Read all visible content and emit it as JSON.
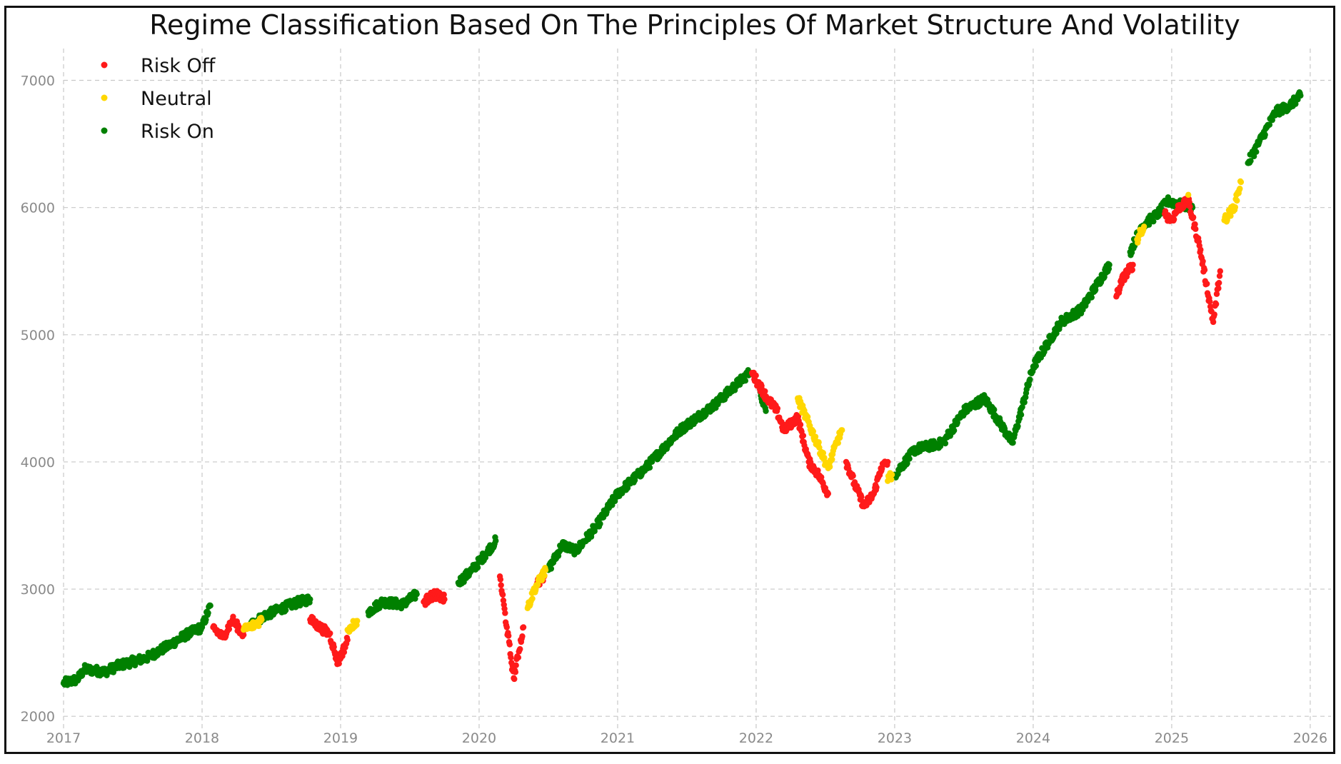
{
  "chart_data": {
    "type": "scatter",
    "title": "Regime Classification Based On The Principles Of Market Structure And Volatility",
    "xlabel": "",
    "ylabel": "",
    "xlim": [
      2017,
      2026.15
    ],
    "ylim": [
      1900,
      7250
    ],
    "x_ticks": [
      "2017",
      "2018",
      "2019",
      "2020",
      "2021",
      "2022",
      "2023",
      "2024",
      "2025",
      "2026"
    ],
    "y_ticks": [
      "2000",
      "3000",
      "4000",
      "5000",
      "6000",
      "7000"
    ],
    "grid": true,
    "legend_position": "top-left",
    "colors": {
      "Risk Off": "#ff1a1a",
      "Neutral": "#ffd700",
      "Risk On": "#008000"
    },
    "legend": [
      "Risk Off",
      "Neutral",
      "Risk On"
    ],
    "series": [
      {
        "name": "Risk On",
        "segments": [
          {
            "x": [
              2017.0,
              2017.1,
              2017.15,
              2017.3,
              2017.4,
              2017.5,
              2017.6,
              2017.75,
              2017.9,
              2018.0,
              2018.06
            ],
            "y": [
              2260,
              2290,
              2370,
              2350,
              2400,
              2430,
              2460,
              2550,
              2650,
              2700,
              2870
            ]
          },
          {
            "x": [
              2018.35,
              2018.45,
              2018.6,
              2018.7,
              2018.78
            ],
            "y": [
              2720,
              2790,
              2860,
              2900,
              2920
            ]
          },
          {
            "x": [
              2019.2,
              2019.3,
              2019.45,
              2019.55
            ],
            "y": [
              2820,
              2900,
              2880,
              2960
            ]
          },
          {
            "x": [
              2019.85,
              2019.95,
              2020.05,
              2020.12
            ],
            "y": [
              3050,
              3150,
              3280,
              3380
            ]
          },
          {
            "x": [
              2020.5,
              2020.6,
              2020.7,
              2020.85,
              2021.0,
              2021.2,
              2021.45,
              2021.7,
              2021.85,
              2021.95
            ],
            "y": [
              3150,
              3350,
              3300,
              3500,
              3750,
              3950,
              4250,
              4450,
              4600,
              4700
            ]
          },
          {
            "x": [
              2022.03,
              2022.07
            ],
            "y": [
              4550,
              4400
            ]
          },
          {
            "x": [
              2023.0,
              2023.15,
              2023.35,
              2023.5,
              2023.65,
              2023.85,
              2024.0,
              2024.2,
              2024.35,
              2024.55
            ],
            "y": [
              3900,
              4100,
              4150,
              4400,
              4500,
              4150,
              4750,
              5100,
              5200,
              5550
            ]
          },
          {
            "x": [
              2024.7,
              2024.78,
              2024.9,
              2024.97,
              2025.15
            ],
            "y": [
              5650,
              5850,
              5950,
              6050,
              6000
            ]
          },
          {
            "x": [
              2025.55,
              2025.65,
              2025.75,
              2025.85,
              2025.93
            ],
            "y": [
              6350,
              6550,
              6750,
              6800,
              6880
            ]
          }
        ]
      },
      {
        "name": "Risk Off",
        "segments": [
          {
            "x": [
              2018.08,
              2018.15,
              2018.22,
              2018.3
            ],
            "y": [
              2700,
              2620,
              2760,
              2640
            ]
          },
          {
            "x": [
              2018.78,
              2018.85,
              2018.92,
              2018.98,
              2019.05
            ],
            "y": [
              2760,
              2700,
              2650,
              2420,
              2600
            ]
          },
          {
            "x": [
              2019.6,
              2019.68,
              2019.75
            ],
            "y": [
              2900,
              2960,
              2920
            ]
          },
          {
            "x": [
              2020.15,
              2020.2,
              2020.25,
              2020.32
            ],
            "y": [
              3100,
              2700,
              2300,
              2700
            ]
          },
          {
            "x": [
              2020.42,
              2020.47
            ],
            "y": [
              3050,
              3100
            ]
          },
          {
            "x": [
              2021.97,
              2022.08,
              2022.15,
              2022.2,
              2022.3,
              2022.38,
              2022.45,
              2022.52
            ],
            "y": [
              4700,
              4500,
              4400,
              4250,
              4350,
              4000,
              3900,
              3750
            ]
          },
          {
            "x": [
              2022.65,
              2022.72,
              2022.78,
              2022.85,
              2022.9,
              2022.95
            ],
            "y": [
              4000,
              3800,
              3650,
              3750,
              3950,
              4000
            ]
          },
          {
            "x": [
              2024.6,
              2024.65,
              2024.72
            ],
            "y": [
              5300,
              5450,
              5550
            ]
          },
          {
            "x": [
              2024.95,
              2025.0,
              2025.05,
              2025.12,
              2025.2,
              2025.25,
              2025.3,
              2025.35
            ],
            "y": [
              5950,
              5900,
              6000,
              6050,
              5700,
              5400,
              5100,
              5500
            ]
          }
        ]
      },
      {
        "name": "Neutral",
        "segments": [
          {
            "x": [
              2018.3,
              2018.38,
              2018.43
            ],
            "y": [
              2680,
              2720,
              2760
            ]
          },
          {
            "x": [
              2019.05,
              2019.12
            ],
            "y": [
              2680,
              2750
            ]
          },
          {
            "x": [
              2020.35,
              2020.4,
              2020.48
            ],
            "y": [
              2850,
              3000,
              3150
            ]
          },
          {
            "x": [
              2022.3,
              2022.52,
              2022.58,
              2022.62
            ],
            "y": [
              4500,
              3950,
              4150,
              4250
            ]
          },
          {
            "x": [
              2022.95,
              2022.98
            ],
            "y": [
              3850,
              3900
            ]
          },
          {
            "x": [
              2024.75,
              2024.8
            ],
            "y": [
              5750,
              5850
            ]
          },
          {
            "x": [
              2025.12
            ],
            "y": [
              6100
            ]
          },
          {
            "x": [
              2025.38,
              2025.45,
              2025.5
            ],
            "y": [
              5900,
              6000,
              6200
            ]
          }
        ]
      }
    ]
  }
}
